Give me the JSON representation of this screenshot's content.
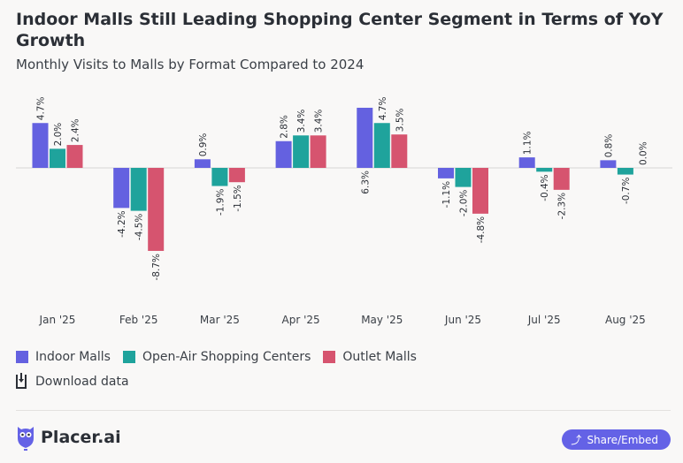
{
  "header": {
    "title": "Indoor Malls Still Leading Shopping Center Segment in Terms of YoY Growth",
    "subtitle": "Monthly Visits to Malls by Format Compared to 2024"
  },
  "chart_data": {
    "type": "bar",
    "categories": [
      "Jan '25",
      "Feb '25",
      "Mar '25",
      "Apr '25",
      "May '25",
      "Jun '25",
      "Jul '25",
      "Aug '25"
    ],
    "series": [
      {
        "name": "Indoor Malls",
        "color": "#6461e0",
        "values": [
          4.7,
          -4.2,
          0.9,
          2.8,
          6.3,
          -1.1,
          1.1,
          0.8
        ]
      },
      {
        "name": "Open-Air Shopping Centers",
        "color": "#1fa39c",
        "values": [
          2.0,
          -4.5,
          -1.9,
          3.4,
          4.7,
          -2.0,
          -0.4,
          -0.7
        ]
      },
      {
        "name": "Outlet Malls",
        "color": "#d6546f",
        "values": [
          2.4,
          -8.7,
          -1.5,
          3.4,
          3.5,
          -4.8,
          -2.3,
          0.0
        ]
      }
    ],
    "value_suffix": "%",
    "legend": "bottom-left",
    "grid": false
  },
  "footer": {
    "download_label": "Download data",
    "brand": "Placer.ai",
    "share_label": "Share/Embed"
  }
}
